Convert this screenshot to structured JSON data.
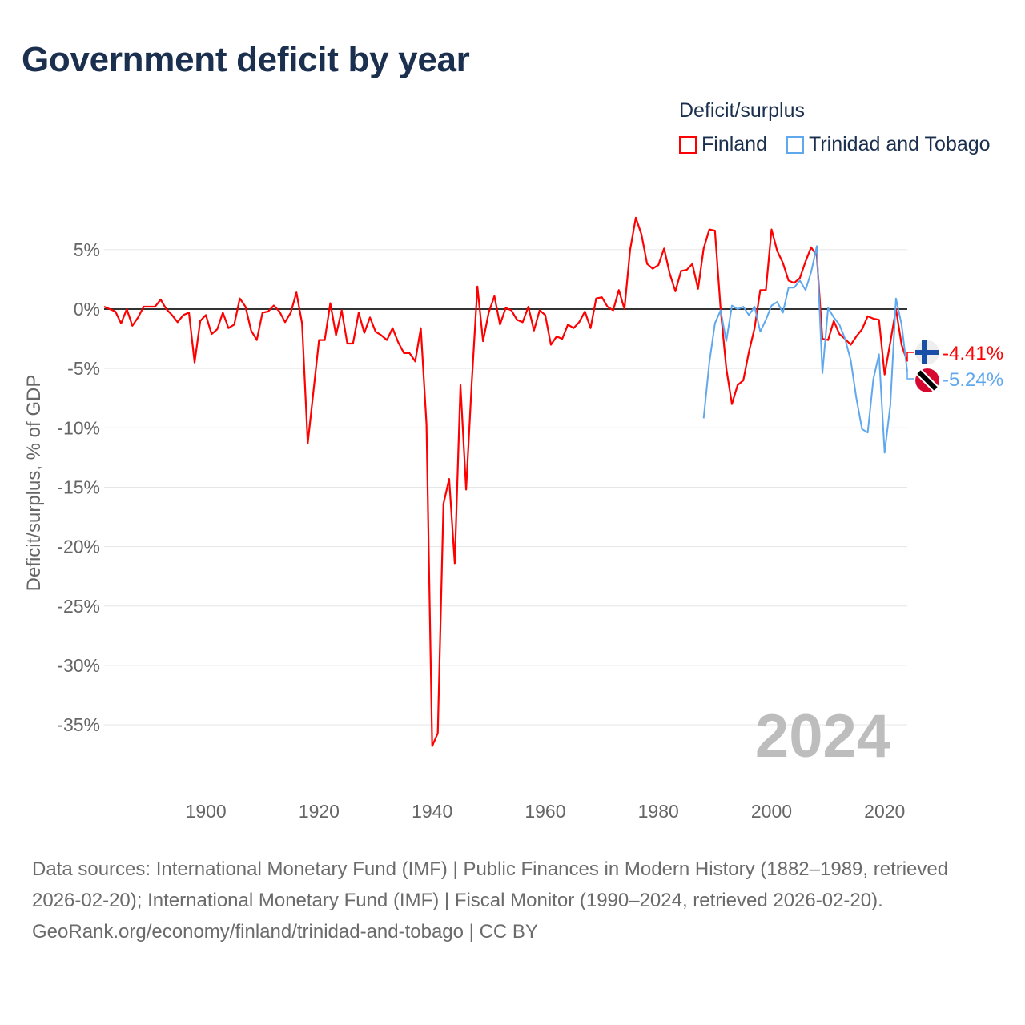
{
  "title": "Government deficit by year",
  "legend": {
    "title": "Deficit/surplus",
    "items": [
      {
        "label": "Finland",
        "color": "#ff0000"
      },
      {
        "label": "Trinidad and Tobago",
        "color": "#5fa8ee"
      }
    ]
  },
  "footer": {
    "sources": "Data sources: International Monetary Fund (IMF) | Public Finances in Modern History (1882–1989, retrieved 2026-02-20); International Monetary Fund (IMF) | Fiscal Monitor (1990–2024, retrieved 2026-02-20).",
    "credit": "GeoRank.org/economy/finland/trinidad-and-tobago | CC BY"
  },
  "chart_data": {
    "type": "line",
    "title": "Government deficit by year",
    "xlabel": "",
    "ylabel": "Deficit/surplus, % of GDP",
    "xlim": [
      1882,
      2024
    ],
    "ylim": [
      -40,
      8
    ],
    "xticks": [
      1900,
      1920,
      1940,
      1960,
      1980,
      2000,
      2020
    ],
    "yticks": [
      5,
      0,
      -5,
      -10,
      -15,
      -20,
      -25,
      -30,
      -35
    ],
    "ytick_labels": [
      "5%",
      "0%",
      "-5%",
      "-10%",
      "-15%",
      "-20%",
      "-25%",
      "-30%",
      "-35%"
    ],
    "grid": true,
    "legend_position": "top-right",
    "year_label": "2024",
    "series": [
      {
        "name": "Finland",
        "color": "#ff0000",
        "start_year": 1882,
        "end_label": "-4.41%",
        "values": [
          0.2,
          0,
          -0.2,
          -1.2,
          0,
          -1.4,
          -0.7,
          0.2,
          0.2,
          0.2,
          0.8,
          0,
          -0.5,
          -1.1,
          -0.5,
          -0.3,
          -4.5,
          -1,
          -0.5,
          -2.1,
          -1.7,
          -0.3,
          -1.6,
          -1.3,
          0.9,
          0.2,
          -1.8,
          -2.6,
          -0.3,
          -0.2,
          0.3,
          -0.2,
          -1.1,
          -0.3,
          1.4,
          -1.2,
          -11.3,
          -7,
          -2.6,
          -2.6,
          0.5,
          -2.2,
          -0.1,
          -2.9,
          -2.9,
          -0.3,
          -2,
          -0.7,
          -1.9,
          -2.2,
          -2.6,
          -1.6,
          -2.8,
          -3.7,
          -3.7,
          -4.4,
          -1.6,
          -9.7,
          -36.8,
          -35.7,
          -16.4,
          -14.3,
          -21.4,
          -6.4,
          -15.2,
          -6.2,
          1.9,
          -2.7,
          -0.3,
          1.1,
          -1.3,
          0.1,
          -0.1,
          -0.9,
          -1.1,
          0.2,
          -1.8,
          -0.1,
          -0.5,
          -3,
          -2.3,
          -2.5,
          -1.3,
          -1.6,
          -1.1,
          -0.2,
          -1.6,
          0.9,
          1,
          0.2,
          -0.1,
          1.6,
          0,
          5,
          7.7,
          6.3,
          3.8,
          3.4,
          3.7,
          5.1,
          3,
          1.5,
          3.2,
          3.3,
          3.8,
          1.7,
          5.1,
          6.7,
          6.6,
          0,
          -5,
          -8,
          -6.4,
          -6,
          -3.6,
          -1.6,
          1.6,
          1.6,
          6.7,
          4.9,
          3.9,
          2.4,
          2.2,
          2.6,
          4,
          5.2,
          4.5,
          -2.5,
          -2.6,
          -1,
          -2.1,
          -2.5,
          -3,
          -2.3,
          -1.7,
          -0.6,
          -0.8,
          -0.9,
          -5.5,
          -2.8,
          0,
          -3,
          -4.41
        ]
      },
      {
        "name": "Trinidad and Tobago",
        "color": "#5fa8ee",
        "start_year": 1988,
        "end_label": "-5.24%",
        "values": [
          -9.2,
          -4.5,
          -1.2,
          -0.1,
          -2.7,
          0.3,
          0,
          0.2,
          -0.5,
          0.2,
          -1.9,
          -0.9,
          0.3,
          0.6,
          -0.3,
          1.8,
          1.8,
          2.4,
          1.6,
          3.1,
          5.3,
          -5.4,
          0.1,
          -0.7,
          -1.3,
          -2.5,
          -4.3,
          -7.5,
          -10.1,
          -10.4,
          -5.9,
          -3.8,
          -12.1,
          -8.1,
          0.9,
          -1.3,
          -5.24
        ]
      }
    ]
  }
}
